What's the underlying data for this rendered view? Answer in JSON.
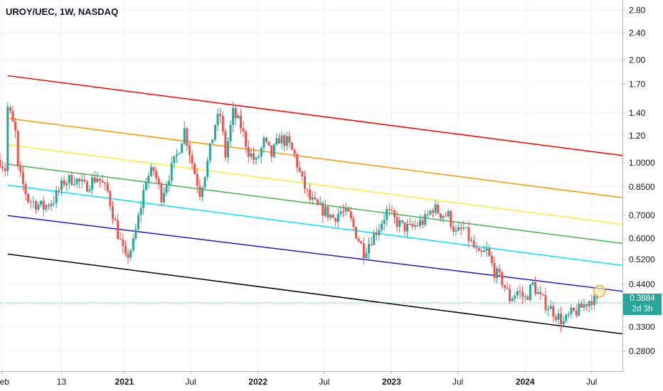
{
  "chart_data": {
    "type": "candlestick",
    "title": "UROY/UEC, 1W, NASDAQ",
    "y_scale": "log",
    "ylim": [
      0.245,
      3.0
    ],
    "x_range": [
      "2020-01-27",
      "2024-09-23"
    ],
    "y_ticks": [
      "2.80",
      "2.40",
      "2.00",
      "1.70",
      "1.40",
      "1.20",
      "1.0000",
      "0.8500",
      "0.7000",
      "0.6000",
      "0.5200",
      "0.4400",
      "0.3300",
      "0.2800"
    ],
    "x_ticks": [
      {
        "label": "Feb",
        "date": "2020-02-01",
        "bold": false
      },
      {
        "label": "13",
        "date": "2020-07-13",
        "bold": false
      },
      {
        "label": "2021",
        "date": "2021-01-01",
        "bold": true
      },
      {
        "label": "Jul",
        "date": "2021-07-01",
        "bold": false
      },
      {
        "label": "2022",
        "date": "2022-01-01",
        "bold": true
      },
      {
        "label": "Jul",
        "date": "2022-07-01",
        "bold": false
      },
      {
        "label": "2023",
        "date": "2023-01-01",
        "bold": true
      },
      {
        "label": "Jul",
        "date": "2023-07-01",
        "bold": false
      },
      {
        "label": "2024",
        "date": "2024-01-01",
        "bold": true
      },
      {
        "label": "Jul",
        "date": "2024-07-01",
        "bold": false
      }
    ],
    "last_price": "0.3884",
    "last_value": 0.3884,
    "countdown": "2d 3h",
    "colors": {
      "up": "#26a69a",
      "down": "#ef5350",
      "badge": "#26a69a"
    },
    "regression_channel": [
      {
        "color": "#ff0000",
        "from": {
          "date": "2020-02-17",
          "value": 1.8
        },
        "to": {
          "date": "2024-09-23",
          "value": 1.05
        }
      },
      {
        "color": "#ff9800",
        "from": {
          "date": "2020-02-17",
          "value": 1.35
        },
        "to": {
          "date": "2024-09-23",
          "value": 0.79
        }
      },
      {
        "color": "#ffeb3b",
        "from": {
          "date": "2020-02-17",
          "value": 1.13
        },
        "to": {
          "date": "2024-09-23",
          "value": 0.66
        }
      },
      {
        "color": "#4caf50",
        "from": {
          "date": "2020-02-17",
          "value": 0.99
        },
        "to": {
          "date": "2024-09-23",
          "value": 0.58
        }
      },
      {
        "color": "#00e5ff",
        "from": {
          "date": "2020-02-17",
          "value": 0.86
        },
        "to": {
          "date": "2024-09-23",
          "value": 0.5
        }
      },
      {
        "color": "#1a1ad6",
        "from": {
          "date": "2020-02-17",
          "value": 0.7
        },
        "to": {
          "date": "2024-09-23",
          "value": 0.42
        }
      },
      {
        "color": "#000000",
        "from": {
          "date": "2020-02-17",
          "value": 0.54
        },
        "to": {
          "date": "2024-09-23",
          "value": 0.315
        }
      }
    ],
    "marker": {
      "date": "2024-07-22",
      "value": 0.42,
      "color": "#f0b030"
    },
    "price_path": [
      [
        "2020-01-27",
        1.02
      ],
      [
        "2020-02-10",
        0.96
      ],
      [
        "2020-02-17",
        1.45
      ],
      [
        "2020-02-24",
        1.38
      ],
      [
        "2020-03-09",
        1.22
      ],
      [
        "2020-03-16",
        0.95
      ],
      [
        "2020-04-13",
        0.78
      ],
      [
        "2020-05-25",
        0.74
      ],
      [
        "2020-06-22",
        0.78
      ],
      [
        "2020-07-20",
        0.88
      ],
      [
        "2020-08-17",
        0.9
      ],
      [
        "2020-09-14",
        0.85
      ],
      [
        "2020-10-19",
        0.91
      ],
      [
        "2020-11-16",
        0.82
      ],
      [
        "2020-12-14",
        0.62
      ],
      [
        "2021-01-04",
        0.52
      ],
      [
        "2021-01-25",
        0.58
      ],
      [
        "2021-02-15",
        0.75
      ],
      [
        "2021-03-01",
        0.9
      ],
      [
        "2021-03-22",
        0.95
      ],
      [
        "2021-04-12",
        0.8
      ],
      [
        "2021-05-03",
        0.92
      ],
      [
        "2021-05-24",
        1.05
      ],
      [
        "2021-06-14",
        1.25
      ],
      [
        "2021-07-05",
        1.0
      ],
      [
        "2021-07-26",
        0.82
      ],
      [
        "2021-08-16",
        1.0
      ],
      [
        "2021-09-06",
        1.3
      ],
      [
        "2021-09-20",
        1.38
      ],
      [
        "2021-10-04",
        1.05
      ],
      [
        "2021-10-25",
        1.4
      ],
      [
        "2021-11-15",
        1.28
      ],
      [
        "2021-12-06",
        1.08
      ],
      [
        "2021-12-27",
        1.0
      ],
      [
        "2022-01-17",
        1.15
      ],
      [
        "2022-02-07",
        1.05
      ],
      [
        "2022-02-28",
        1.18
      ],
      [
        "2022-03-21",
        1.15
      ],
      [
        "2022-04-11",
        1.05
      ],
      [
        "2022-05-02",
        0.88
      ],
      [
        "2022-05-23",
        0.78
      ],
      [
        "2022-06-13",
        0.74
      ],
      [
        "2022-07-04",
        0.72
      ],
      [
        "2022-07-25",
        0.69
      ],
      [
        "2022-08-15",
        0.72
      ],
      [
        "2022-09-05",
        0.7
      ],
      [
        "2022-09-26",
        0.62
      ],
      [
        "2022-10-17",
        0.55
      ],
      [
        "2022-11-07",
        0.6
      ],
      [
        "2022-11-28",
        0.65
      ],
      [
        "2022-12-19",
        0.72
      ],
      [
        "2023-01-09",
        0.68
      ],
      [
        "2023-01-30",
        0.65
      ],
      [
        "2023-02-20",
        0.64
      ],
      [
        "2023-03-13",
        0.66
      ],
      [
        "2023-04-03",
        0.68
      ],
      [
        "2023-04-24",
        0.74
      ],
      [
        "2023-05-15",
        0.71
      ],
      [
        "2023-06-05",
        0.7
      ],
      [
        "2023-06-26",
        0.62
      ],
      [
        "2023-07-17",
        0.64
      ],
      [
        "2023-08-07",
        0.58
      ],
      [
        "2023-08-28",
        0.53
      ],
      [
        "2023-09-18",
        0.55
      ],
      [
        "2023-10-09",
        0.48
      ],
      [
        "2023-10-30",
        0.45
      ],
      [
        "2023-11-20",
        0.4
      ],
      [
        "2023-12-11",
        0.42
      ],
      [
        "2024-01-01",
        0.4
      ],
      [
        "2024-01-22",
        0.44
      ],
      [
        "2024-02-12",
        0.4
      ],
      [
        "2024-03-04",
        0.38
      ],
      [
        "2024-03-25",
        0.36
      ],
      [
        "2024-04-15",
        0.34
      ],
      [
        "2024-05-06",
        0.36
      ],
      [
        "2024-05-27",
        0.37
      ],
      [
        "2024-06-17",
        0.39
      ],
      [
        "2024-07-01",
        0.4
      ],
      [
        "2024-07-15",
        0.388
      ]
    ]
  }
}
